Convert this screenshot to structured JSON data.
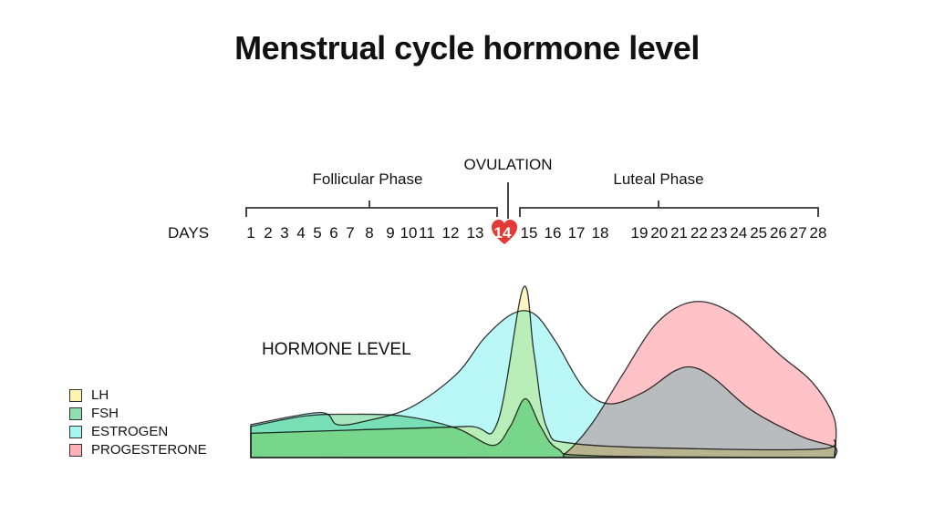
{
  "title": "Menstrual cycle hormone level",
  "phases": {
    "follicular": "Follicular Phase",
    "ovulation": "OVULATION",
    "luteal": "Luteal Phase"
  },
  "days_label": "DAYS",
  "hormone_label": "HORMONE LEVEL",
  "chart_data": {
    "type": "area",
    "title": "Menstrual cycle hormone level",
    "xlabel": "DAYS",
    "ylabel": "HORMONE LEVEL",
    "x_ticks": [
      "1",
      "2",
      "3",
      "4",
      "5",
      "6",
      "7",
      "8",
      "9",
      "10",
      "11",
      "12",
      "13",
      "14",
      "15",
      "16",
      "17",
      "18",
      "19",
      "20",
      "21",
      "22",
      "23",
      "24",
      "25",
      "26",
      "27",
      "28"
    ],
    "highlight_day": "14",
    "xlim": [
      1,
      28
    ],
    "ylim": [
      0,
      100
    ],
    "legend_position": "left",
    "series": [
      {
        "name": "PROGESTERONE",
        "color": "#ffb3b8",
        "points": [
          [
            1,
            0
          ],
          [
            14.5,
            0
          ],
          [
            15.5,
            2
          ],
          [
            16.8,
            20
          ],
          [
            18.2,
            48
          ],
          [
            19.8,
            78
          ],
          [
            21.5,
            90
          ],
          [
            23.3,
            83
          ],
          [
            25.5,
            59
          ],
          [
            27,
            43
          ],
          [
            28,
            22
          ],
          [
            28,
            0
          ]
        ]
      },
      {
        "name": "ESTROGEN",
        "color": "#a8f6f4",
        "points": [
          [
            1,
            19
          ],
          [
            4.2,
            26
          ],
          [
            5,
            19
          ],
          [
            6.3,
            21
          ],
          [
            8.4,
            29
          ],
          [
            10.5,
            48
          ],
          [
            11.8,
            69
          ],
          [
            13.1,
            83
          ],
          [
            14.1,
            83
          ],
          [
            15.1,
            67
          ],
          [
            16.4,
            40
          ],
          [
            17.6,
            31
          ],
          [
            19.2,
            38
          ],
          [
            20.6,
            50
          ],
          [
            21.5,
            52
          ],
          [
            22.5,
            45
          ],
          [
            24.2,
            27
          ],
          [
            26.5,
            12
          ],
          [
            28,
            6
          ],
          [
            28,
            0
          ]
        ]
      },
      {
        "name": "LH",
        "color": "#fff3b0",
        "points": [
          [
            1,
            14
          ],
          [
            6,
            16
          ],
          [
            11,
            18
          ],
          [
            12.4,
            20
          ],
          [
            13.6,
            98
          ],
          [
            14.1,
            60
          ],
          [
            14.7,
            17
          ],
          [
            16,
            8
          ],
          [
            22,
            5
          ],
          [
            27.4,
            5
          ],
          [
            28,
            10
          ],
          [
            28,
            0
          ]
        ]
      },
      {
        "name": "FSH",
        "color": "#8fe0ae",
        "points": [
          [
            1,
            18
          ],
          [
            3.5,
            24
          ],
          [
            5.5,
            25
          ],
          [
            8,
            24
          ],
          [
            10.5,
            17
          ],
          [
            12.2,
            7
          ],
          [
            13,
            18
          ],
          [
            13.7,
            34
          ],
          [
            14.4,
            18
          ],
          [
            15.2,
            5
          ],
          [
            17,
            1
          ],
          [
            28,
            0
          ]
        ]
      }
    ]
  },
  "legend": [
    {
      "label": "LH",
      "color": "#fff3b0"
    },
    {
      "label": "FSH",
      "color": "#8fe0ae"
    },
    {
      "label": "ESTROGEN",
      "color": "#a8f6f4"
    },
    {
      "label": "PROGESTERONE",
      "color": "#ffb3b8"
    }
  ],
  "heart_color": "#e53935"
}
